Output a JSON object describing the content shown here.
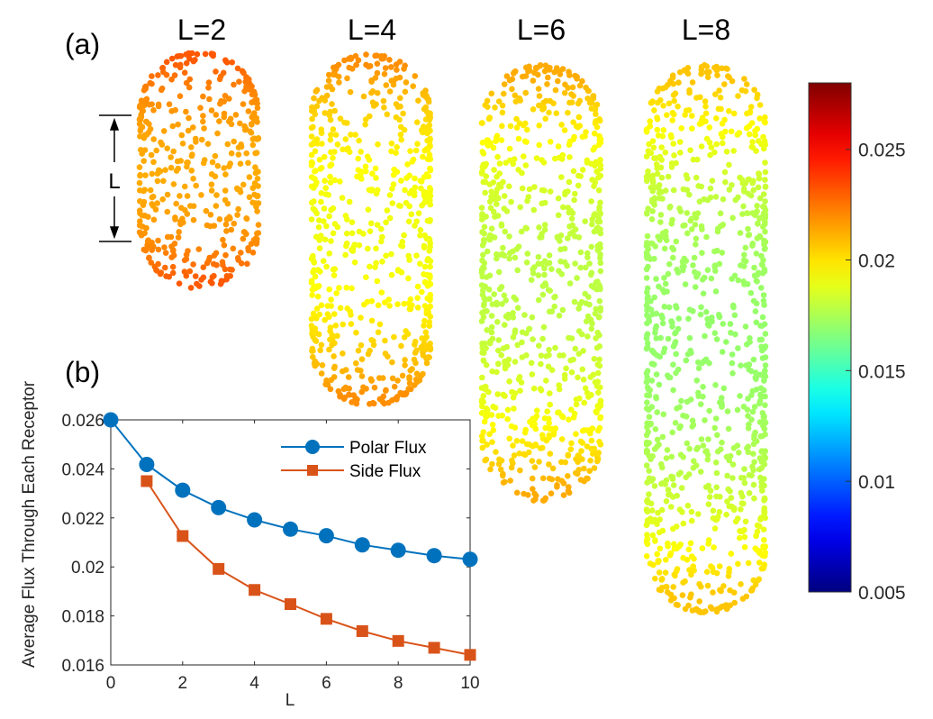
{
  "chart_data": [
    {
      "panel": "(a)",
      "type": "scatter",
      "capsules": [
        {
          "label": "L=2",
          "L": 2
        },
        {
          "label": "L=4",
          "L": 4
        },
        {
          "label": "L=6",
          "L": 6
        },
        {
          "label": "L=8",
          "L": 8
        }
      ],
      "dimension_label": "L",
      "colormap": "jet",
      "colorbar": {
        "clim": [
          0.005,
          0.028
        ],
        "ticks": [
          0.005,
          0.01,
          0.015,
          0.02,
          0.025
        ],
        "tick_labels": [
          "0.005",
          "0.01",
          "0.015",
          "0.02",
          "0.025"
        ]
      }
    },
    {
      "panel": "(b)",
      "type": "line",
      "xlabel": "L",
      "ylabel": "Average Flux Through Each Receptor",
      "xlim": [
        0,
        10
      ],
      "ylim": [
        0.016,
        0.026
      ],
      "xticks": [
        "0",
        "2",
        "4",
        "6",
        "8",
        "10"
      ],
      "yticks": [
        "0.016",
        "0.018",
        "0.02",
        "0.022",
        "0.024",
        "0.026"
      ],
      "grid": false,
      "legend": "top-right",
      "series": [
        {
          "name": "Polar Flux",
          "color": "#0072BD",
          "marker": "circle",
          "x": [
            0,
            1,
            2,
            3,
            4,
            5,
            6,
            7,
            8,
            9,
            10
          ],
          "y": [
            0.026,
            0.02418,
            0.02313,
            0.02242,
            0.02192,
            0.02154,
            0.02127,
            0.0209,
            0.02068,
            0.02046,
            0.02031
          ]
        },
        {
          "name": "Side Flux",
          "color": "#D95319",
          "marker": "square",
          "x": [
            1,
            2,
            3,
            4,
            5,
            6,
            7,
            8,
            9,
            10
          ],
          "y": [
            0.0235,
            0.02126,
            0.01992,
            0.01906,
            0.01848,
            0.01788,
            0.01738,
            0.01698,
            0.0167,
            0.01641
          ]
        }
      ]
    }
  ]
}
